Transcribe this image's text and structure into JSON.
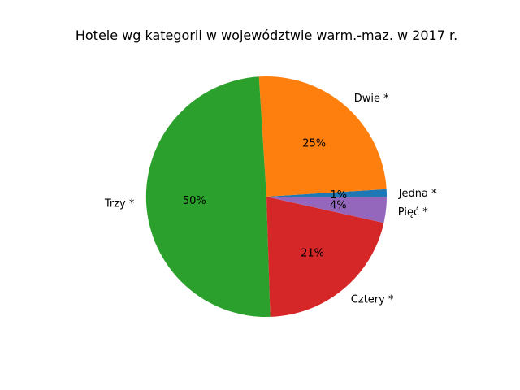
{
  "chart_data": {
    "type": "pie",
    "title": "Hotele wg kategorii w województwie warm.-maz. w 2017 r.",
    "slices": [
      {
        "label": "Jedna *",
        "value": 1.0,
        "pct_label": "1%",
        "color": "#1f77b4"
      },
      {
        "label": "Dwie *",
        "value": 25.0,
        "pct_label": "25%",
        "color": "#ff7f0e"
      },
      {
        "label": "Trzy *",
        "value": 49.5,
        "pct_label": "50%",
        "color": "#2ca02c"
      },
      {
        "label": "Cztery *",
        "value": 21.0,
        "pct_label": "21%",
        "color": "#d62728"
      },
      {
        "label": "Pięć *",
        "value": 3.5,
        "pct_label": "4%",
        "color": "#9467bd"
      }
    ],
    "legend": "none"
  }
}
